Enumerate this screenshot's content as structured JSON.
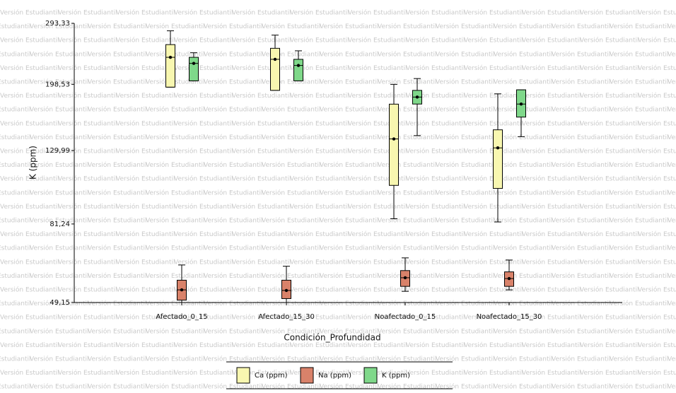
{
  "watermark": "Versión Estudiantil",
  "chart_data": {
    "type": "boxplot",
    "x_label": "Condición_Profundidad",
    "y_label": "K (ppm)",
    "y_scale": "log",
    "ylim": [
      49.15,
      293.33
    ],
    "yticks": [
      {
        "value": 49.15,
        "label": "49,15"
      },
      {
        "value": 81.24,
        "label": "81,24"
      },
      {
        "value": 129.99,
        "label": "129,99"
      },
      {
        "value": 198.53,
        "label": "198,53"
      },
      {
        "value": 293.33,
        "label": "293,33"
      }
    ],
    "categories": [
      "Afectado_0_15",
      "Afectado_15_30",
      "Noafectado_0_15",
      "Noafectado_15_30"
    ],
    "legend": "bottom",
    "series": [
      {
        "name": "Ca (ppm)",
        "color": "#f8f7b0",
        "stats": [
          {
            "min": 195,
            "q1": 195,
            "median": 236,
            "mean": 236,
            "q3": 256,
            "max": 279.6
          },
          {
            "min": 191,
            "q1": 191,
            "median": 233,
            "mean": 233,
            "q3": 250,
            "max": 272
          },
          {
            "min": 84,
            "q1": 104,
            "median": 140,
            "mean": 140,
            "q3": 174.9,
            "max": 198.5
          },
          {
            "min": 82.3,
            "q1": 102,
            "median": 132.2,
            "mean": 132.2,
            "q3": 148.4,
            "max": 186.8
          }
        ]
      },
      {
        "name": "Na (ppm)",
        "color": "#d9826a",
        "stats": [
          {
            "min": 49.15,
            "q1": 49.9,
            "median": 53.3,
            "mean": 53.3,
            "q3": 56.7,
            "max": 62.5
          },
          {
            "min": 49.15,
            "q1": 50.4,
            "median": 53.1,
            "mean": 53.1,
            "q3": 56.7,
            "max": 62
          },
          {
            "min": 52.8,
            "q1": 54.5,
            "median": 57.6,
            "mean": 57.6,
            "q3": 60.3,
            "max": 65.4
          },
          {
            "min": 53.3,
            "q1": 54.5,
            "median": 57.3,
            "mean": 57.3,
            "q3": 59.8,
            "max": 64.5
          }
        ]
      },
      {
        "name": "K (ppm)",
        "color": "#7fd88a",
        "stats": [
          {
            "min": 203,
            "q1": 203,
            "median": 227,
            "mean": 227,
            "q3": 236,
            "max": 243
          },
          {
            "min": 203,
            "q1": 203,
            "median": 224,
            "mean": 224,
            "q3": 233,
            "max": 246
          },
          {
            "min": 143,
            "q1": 175,
            "median": 183,
            "mean": 183,
            "q3": 191,
            "max": 206
          },
          {
            "min": 142,
            "q1": 161,
            "median": 175,
            "mean": 175,
            "q3": 191.7,
            "max": 191.7
          }
        ]
      }
    ]
  }
}
